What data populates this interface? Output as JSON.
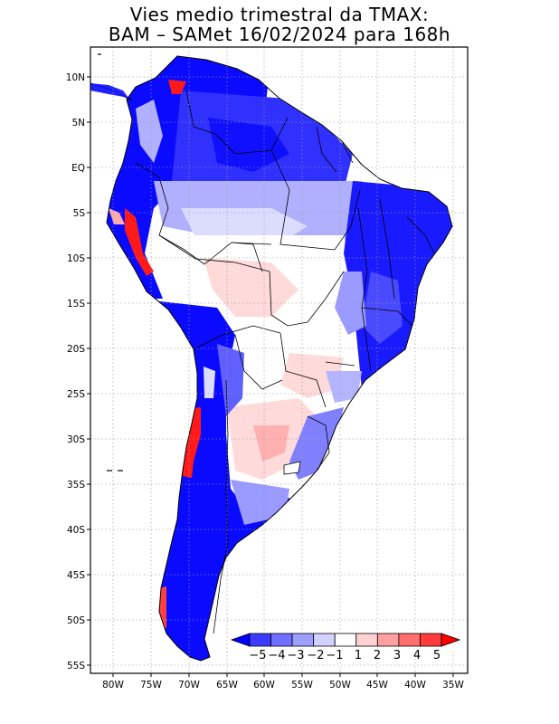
{
  "title": {
    "line1": "Vies medio trimestral da TMAX:",
    "line2": "BAM – SAMet 16/02/2024  para 168h"
  },
  "lat_ticks": [
    "10N",
    "5N",
    "EQ",
    "5S",
    "10S",
    "15S",
    "20S",
    "25S",
    "30S",
    "35S",
    "40S",
    "45S",
    "50S",
    "55S"
  ],
  "lon_ticks": [
    "80W",
    "75W",
    "70W",
    "65W",
    "60W",
    "55W",
    "50W",
    "45W",
    "40W",
    "35W"
  ],
  "colorbar": {
    "labels": [
      "−5",
      "−4",
      "−3",
      "−2",
      "−1",
      "1",
      "2",
      "3",
      "4",
      "5"
    ],
    "colors": [
      "#0000ff",
      "#3b3bff",
      "#6e6eff",
      "#9e9eff",
      "#d2d2ff",
      "#ffffff",
      "#ffd2d2",
      "#ffa0a0",
      "#ff6e6e",
      "#ff3b3b",
      "#ff0000"
    ]
  },
  "map_colors": {
    "strong_neg": "#0a0aff",
    "neg": "#4040ff",
    "mid_neg": "#7a7aff",
    "light_neg": "#b5b5ff",
    "pale_neg": "#dcdcff",
    "neutral": "#ffffff",
    "pale_pos": "#ffd8d8",
    "pos": "#ffaaaa",
    "strong_pos": "#ff1a1a"
  }
}
